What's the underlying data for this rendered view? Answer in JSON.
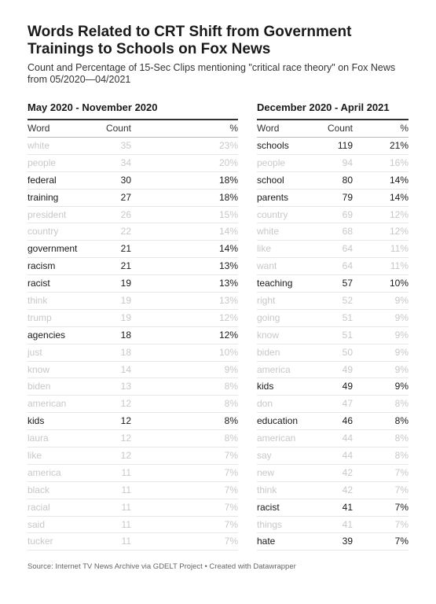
{
  "chart_data": {
    "type": "table",
    "title": "Words Related to CRT Shift from Government Trainings to Schools on Fox News",
    "subtitle": "Count and Percentage of 15-Sec Clips mentioning \"critical race theory\" on Fox News from 05/2020—04/2021",
    "source": "Source: Internet TV News Archive via GDELT Project • Created with Datawrapper",
    "columns": [
      "Word",
      "Count",
      "%"
    ],
    "tables": [
      {
        "title": "May 2020 - November 2020",
        "rows": [
          {
            "word": "white",
            "count": "35",
            "pct": "23%",
            "highlight": false
          },
          {
            "word": "people",
            "count": "34",
            "pct": "20%",
            "highlight": false
          },
          {
            "word": "federal",
            "count": "30",
            "pct": "18%",
            "highlight": true
          },
          {
            "word": "training",
            "count": "27",
            "pct": "18%",
            "highlight": true
          },
          {
            "word": "president",
            "count": "26",
            "pct": "15%",
            "highlight": false
          },
          {
            "word": "country",
            "count": "22",
            "pct": "14%",
            "highlight": false
          },
          {
            "word": "government",
            "count": "21",
            "pct": "14%",
            "highlight": true
          },
          {
            "word": "racism",
            "count": "21",
            "pct": "13%",
            "highlight": true
          },
          {
            "word": "racist",
            "count": "19",
            "pct": "13%",
            "highlight": true
          },
          {
            "word": "think",
            "count": "19",
            "pct": "13%",
            "highlight": false
          },
          {
            "word": "trump",
            "count": "19",
            "pct": "12%",
            "highlight": false
          },
          {
            "word": "agencies",
            "count": "18",
            "pct": "12%",
            "highlight": true
          },
          {
            "word": "just",
            "count": "18",
            "pct": "10%",
            "highlight": false
          },
          {
            "word": "know",
            "count": "14",
            "pct": "9%",
            "highlight": false
          },
          {
            "word": "biden",
            "count": "13",
            "pct": "8%",
            "highlight": false
          },
          {
            "word": "american",
            "count": "12",
            "pct": "8%",
            "highlight": false
          },
          {
            "word": "kids",
            "count": "12",
            "pct": "8%",
            "highlight": true
          },
          {
            "word": "laura",
            "count": "12",
            "pct": "8%",
            "highlight": false
          },
          {
            "word": "like",
            "count": "12",
            "pct": "7%",
            "highlight": false
          },
          {
            "word": "america",
            "count": "11",
            "pct": "7%",
            "highlight": false
          },
          {
            "word": "black",
            "count": "11",
            "pct": "7%",
            "highlight": false
          },
          {
            "word": "racial",
            "count": "11",
            "pct": "7%",
            "highlight": false
          },
          {
            "word": "said",
            "count": "11",
            "pct": "7%",
            "highlight": false
          },
          {
            "word": "tucker",
            "count": "11",
            "pct": "7%",
            "highlight": false
          }
        ]
      },
      {
        "title": "December 2020 - April 2021",
        "rows": [
          {
            "word": "schools",
            "count": "119",
            "pct": "21%",
            "highlight": true
          },
          {
            "word": "people",
            "count": "94",
            "pct": "16%",
            "highlight": false
          },
          {
            "word": "school",
            "count": "80",
            "pct": "14%",
            "highlight": true
          },
          {
            "word": "parents",
            "count": "79",
            "pct": "14%",
            "highlight": true
          },
          {
            "word": "country",
            "count": "69",
            "pct": "12%",
            "highlight": false
          },
          {
            "word": "white",
            "count": "68",
            "pct": "12%",
            "highlight": false
          },
          {
            "word": "like",
            "count": "64",
            "pct": "11%",
            "highlight": false
          },
          {
            "word": "want",
            "count": "64",
            "pct": "11%",
            "highlight": false
          },
          {
            "word": "teaching",
            "count": "57",
            "pct": "10%",
            "highlight": true
          },
          {
            "word": "right",
            "count": "52",
            "pct": "9%",
            "highlight": false
          },
          {
            "word": "going",
            "count": "51",
            "pct": "9%",
            "highlight": false
          },
          {
            "word": "know",
            "count": "51",
            "pct": "9%",
            "highlight": false
          },
          {
            "word": "biden",
            "count": "50",
            "pct": "9%",
            "highlight": false
          },
          {
            "word": "america",
            "count": "49",
            "pct": "9%",
            "highlight": false
          },
          {
            "word": "kids",
            "count": "49",
            "pct": "9%",
            "highlight": true
          },
          {
            "word": "don",
            "count": "47",
            "pct": "8%",
            "highlight": false
          },
          {
            "word": "education",
            "count": "46",
            "pct": "8%",
            "highlight": true
          },
          {
            "word": "american",
            "count": "44",
            "pct": "8%",
            "highlight": false
          },
          {
            "word": "say",
            "count": "44",
            "pct": "8%",
            "highlight": false
          },
          {
            "word": "new",
            "count": "42",
            "pct": "7%",
            "highlight": false
          },
          {
            "word": "think",
            "count": "42",
            "pct": "7%",
            "highlight": false
          },
          {
            "word": "racist",
            "count": "41",
            "pct": "7%",
            "highlight": true
          },
          {
            "word": "things",
            "count": "41",
            "pct": "7%",
            "highlight": false
          },
          {
            "word": "hate",
            "count": "39",
            "pct": "7%",
            "highlight": true
          }
        ]
      }
    ]
  }
}
